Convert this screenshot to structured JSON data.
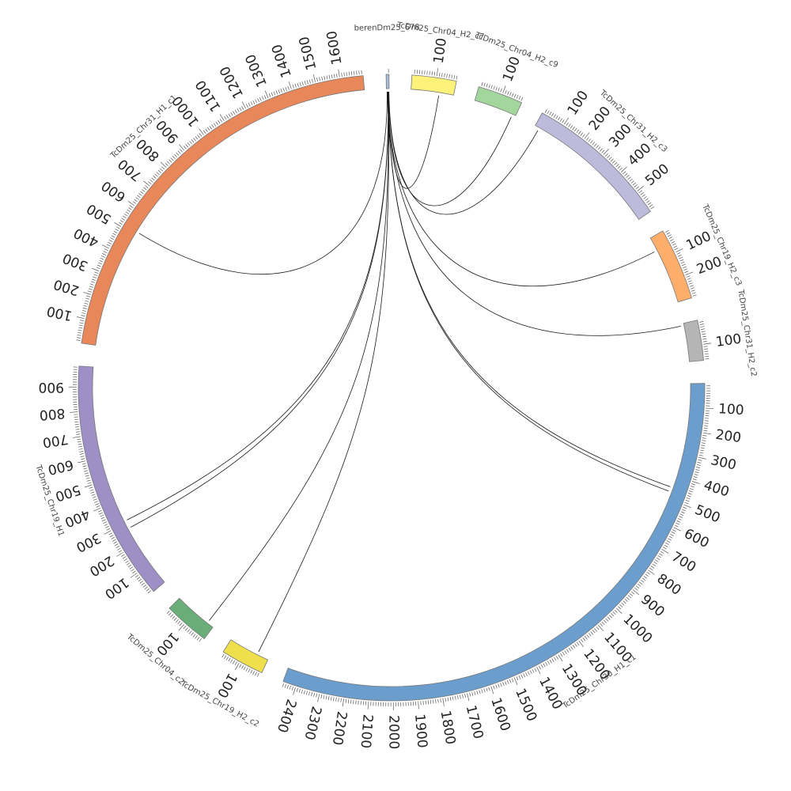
{
  "diagram": {
    "type": "circos",
    "contigs": [
      {
        "id": "small",
        "name": "berenDm25_678",
        "length": 12,
        "color": "#a6bddb"
      },
      {
        "id": "c04h2c7",
        "name": "TcDm25_Chr04_H2_c7",
        "length": 182,
        "color": "#fff27a"
      },
      {
        "id": "c04h2c9",
        "name": "TcDm25_Chr04_H2_c9",
        "length": 185,
        "color": "#a3d69c"
      },
      {
        "id": "c31h2c3",
        "name": "TcDm25_Chr31_H2_c3",
        "length": 598,
        "color": "#bcbbdc"
      },
      {
        "id": "c19h2c3",
        "name": "TcDm25_Chr19_H2_c3",
        "length": 296,
        "color": "#fdae6b"
      },
      {
        "id": "c31h2c2",
        "name": "TcDm25_Chr31_H2_c2",
        "length": 165,
        "color": "#b5b5b5"
      },
      {
        "id": "c30h1c1",
        "name": "TcDm25_Chr30_H1_c1",
        "length": 2455,
        "color": "#6b9ecd"
      },
      {
        "id": "c19h2c2",
        "name": "TcDm25_Chr19_H2_c2",
        "length": 178,
        "color": "#f0df4c"
      },
      {
        "id": "c04c2",
        "name": "TcDm25_Chr04_c2",
        "length": 188,
        "color": "#69ae79"
      },
      {
        "id": "c19h1",
        "name": "TcDm25_Chr19_H1",
        "length": 985,
        "color": "#9e8fc7"
      },
      {
        "id": "c31h1c1",
        "name": "TcDm25_Chr31_H1_c1",
        "length": 1695,
        "color": "#e8875a"
      }
    ],
    "links": [
      {
        "a": "small",
        "a_pos": 3,
        "b": "c31h1c1",
        "b_pos": 515,
        "color": "#1a1a1a"
      },
      {
        "a": "small",
        "a_pos": 4,
        "b": "c19h2c3",
        "b_pos": 60,
        "color": "#1a1a1a"
      },
      {
        "a": "small",
        "a_pos": 5,
        "b": "c31h2c2",
        "b_pos": 10,
        "color": "#1a1a1a"
      },
      {
        "a": "small",
        "a_pos": 6,
        "b": "c30h1c1",
        "b_pos": 450,
        "color": "#1a1a1a"
      },
      {
        "a": "small",
        "a_pos": 7,
        "b": "c30h1c1",
        "b_pos": 470,
        "color": "#1a1a1a"
      },
      {
        "a": "small",
        "a_pos": 8,
        "b": "c19h1",
        "b_pos": 310,
        "color": "#1a1a1a"
      },
      {
        "a": "small",
        "a_pos": 8,
        "b": "c19h1",
        "b_pos": 275,
        "color": "#1a1a1a"
      },
      {
        "a": "small",
        "a_pos": 9,
        "b": "c04c2",
        "b_pos": 30,
        "color": "#1a1a1a"
      },
      {
        "a": "small",
        "a_pos": 10,
        "b": "c19h2c2",
        "b_pos": 50,
        "color": "#1a1a1a"
      },
      {
        "a": "small",
        "a_pos": 9,
        "b": "c04h2c7",
        "b_pos": 120,
        "color": "#2c6fa8"
      },
      {
        "a": "small",
        "a_pos": 10,
        "b": "c04h2c9",
        "b_pos": 170,
        "color": "#333333"
      },
      {
        "a": "small",
        "a_pos": 11,
        "b": "c31h2c3",
        "b_pos": 20,
        "color": "#8b4513"
      }
    ]
  }
}
